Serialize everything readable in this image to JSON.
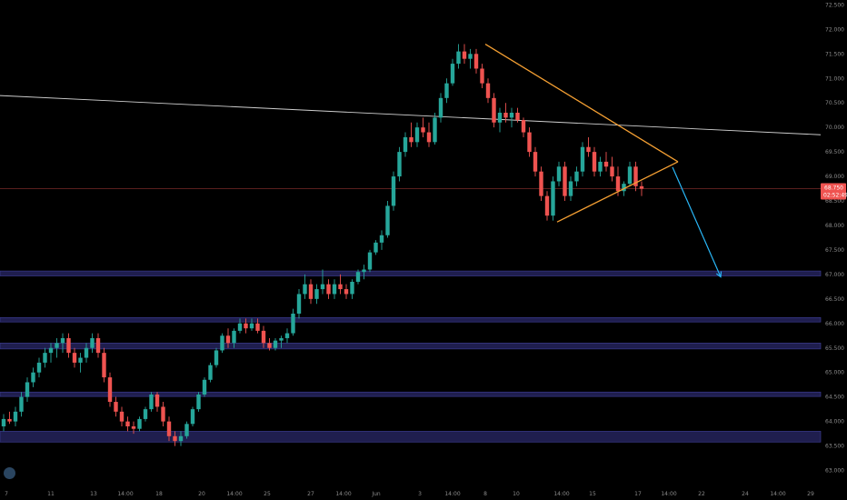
{
  "chart_data": {
    "type": "candlestick",
    "y_range": [
      62.75,
      72.6
    ],
    "y_ticks": [
      "72.500",
      "72.000",
      "71.500",
      "71.000",
      "70.500",
      "70.000",
      "69.500",
      "69.000",
      "68.500",
      "68.000",
      "67.500",
      "67.000",
      "66.500",
      "66.000",
      "65.500",
      "65.000",
      "64.500",
      "64.000",
      "63.500",
      "63.000"
    ],
    "x_ticks": [
      "7",
      "11",
      "13",
      "14:00",
      "18",
      "20",
      "14:00",
      "25",
      "27",
      "14:00",
      "Jun",
      "3",
      "14:00",
      "8",
      "10",
      "14:00",
      "15",
      "17",
      "14:00",
      "22",
      "24",
      "14:00",
      "29"
    ],
    "last_price": {
      "value": 68.75,
      "label": "68.750",
      "countdown": "02:52:49"
    },
    "support_zones": [
      [
        66.97,
        67.07
      ],
      [
        66.03,
        66.12
      ],
      [
        65.48,
        65.6
      ],
      [
        64.51,
        64.6
      ],
      [
        63.58,
        63.8
      ]
    ],
    "resistance_line": {
      "from": 70.65,
      "to": 69.85
    },
    "triangle": {
      "apex": 69.3,
      "upper_start": 71.7,
      "lower_start": 68.07
    },
    "projection_target": 66.95,
    "colors": {
      "up": "#26a69a",
      "down": "#ef5350",
      "zone": "#1f1e4e",
      "zone_border": "#3a3a8c",
      "triangle": "#f5a033",
      "arrow": "#29b6f6",
      "trend": "#cfcfcf",
      "last_price": "#ef5350"
    },
    "candles": [
      [
        63.9,
        64.15,
        63.8,
        64.05
      ],
      [
        64.05,
        64.2,
        63.95,
        64.0
      ],
      [
        64.0,
        64.3,
        63.9,
        64.2
      ],
      [
        64.2,
        64.6,
        64.1,
        64.5
      ],
      [
        64.5,
        64.9,
        64.4,
        64.8
      ],
      [
        64.8,
        65.1,
        64.7,
        65.0
      ],
      [
        65.0,
        65.3,
        64.9,
        65.2
      ],
      [
        65.2,
        65.5,
        65.1,
        65.4
      ],
      [
        65.4,
        65.6,
        65.2,
        65.5
      ],
      [
        65.5,
        65.7,
        65.3,
        65.6
      ],
      [
        65.6,
        65.8,
        65.4,
        65.7
      ],
      [
        65.7,
        65.8,
        65.3,
        65.4
      ],
      [
        65.4,
        65.5,
        65.1,
        65.2
      ],
      [
        65.2,
        65.4,
        65.0,
        65.3
      ],
      [
        65.3,
        65.6,
        65.2,
        65.5
      ],
      [
        65.5,
        65.8,
        65.4,
        65.7
      ],
      [
        65.7,
        65.8,
        65.3,
        65.4
      ],
      [
        65.4,
        65.5,
        64.8,
        64.9
      ],
      [
        64.9,
        65.0,
        64.3,
        64.4
      ],
      [
        64.4,
        64.5,
        64.1,
        64.2
      ],
      [
        64.2,
        64.3,
        63.9,
        64.0
      ],
      [
        64.0,
        64.1,
        63.8,
        63.9
      ],
      [
        63.9,
        64.0,
        63.75,
        63.85
      ],
      [
        63.85,
        64.1,
        63.8,
        64.05
      ],
      [
        64.05,
        64.3,
        64.0,
        64.25
      ],
      [
        64.25,
        64.6,
        64.2,
        64.55
      ],
      [
        64.55,
        64.6,
        64.2,
        64.3
      ],
      [
        64.3,
        64.4,
        63.9,
        64.0
      ],
      [
        64.0,
        64.1,
        63.6,
        63.7
      ],
      [
        63.7,
        63.8,
        63.5,
        63.6
      ],
      [
        63.6,
        63.8,
        63.5,
        63.7
      ],
      [
        63.7,
        64.0,
        63.65,
        63.95
      ],
      [
        63.95,
        64.3,
        63.9,
        64.25
      ],
      [
        64.25,
        64.6,
        64.2,
        64.55
      ],
      [
        64.55,
        64.9,
        64.5,
        64.85
      ],
      [
        64.85,
        65.2,
        64.8,
        65.15
      ],
      [
        65.15,
        65.5,
        65.1,
        65.45
      ],
      [
        65.45,
        65.8,
        65.4,
        65.75
      ],
      [
        65.75,
        65.9,
        65.5,
        65.6
      ],
      [
        65.6,
        65.9,
        65.5,
        65.85
      ],
      [
        65.85,
        66.1,
        65.8,
        66.0
      ],
      [
        66.0,
        66.1,
        65.8,
        65.9
      ],
      [
        65.9,
        66.1,
        65.85,
        66.0
      ],
      [
        66.0,
        66.1,
        65.8,
        65.85
      ],
      [
        65.85,
        65.95,
        65.5,
        65.6
      ],
      [
        65.6,
        65.7,
        65.45,
        65.5
      ],
      [
        65.5,
        65.7,
        65.45,
        65.65
      ],
      [
        65.65,
        65.75,
        65.5,
        65.7
      ],
      [
        65.7,
        65.9,
        65.6,
        65.8
      ],
      [
        65.8,
        66.3,
        65.75,
        66.2
      ],
      [
        66.2,
        66.7,
        66.1,
        66.6
      ],
      [
        66.6,
        67.0,
        66.5,
        66.8
      ],
      [
        66.8,
        66.9,
        66.4,
        66.5
      ],
      [
        66.5,
        66.8,
        66.4,
        66.7
      ],
      [
        66.7,
        67.1,
        66.6,
        66.8
      ],
      [
        66.8,
        66.9,
        66.5,
        66.6
      ],
      [
        66.6,
        66.9,
        66.5,
        66.8
      ],
      [
        66.8,
        67.0,
        66.6,
        66.7
      ],
      [
        66.7,
        66.8,
        66.5,
        66.6
      ],
      [
        66.6,
        66.9,
        66.5,
        66.85
      ],
      [
        66.85,
        67.1,
        66.8,
        67.05
      ],
      [
        67.05,
        67.2,
        66.9,
        67.1
      ],
      [
        67.1,
        67.5,
        67.05,
        67.45
      ],
      [
        67.45,
        67.7,
        67.4,
        67.65
      ],
      [
        67.65,
        67.9,
        67.5,
        67.8
      ],
      [
        67.8,
        68.5,
        67.75,
        68.4
      ],
      [
        68.4,
        69.1,
        68.3,
        69.0
      ],
      [
        69.0,
        69.6,
        68.9,
        69.5
      ],
      [
        69.5,
        69.9,
        69.4,
        69.8
      ],
      [
        69.8,
        70.1,
        69.6,
        69.7
      ],
      [
        69.7,
        70.1,
        69.6,
        70.0
      ],
      [
        70.0,
        70.2,
        69.8,
        69.9
      ],
      [
        69.9,
        70.1,
        69.6,
        69.7
      ],
      [
        69.7,
        70.3,
        69.65,
        70.2
      ],
      [
        70.2,
        70.7,
        70.1,
        70.6
      ],
      [
        70.6,
        71.0,
        70.5,
        70.9
      ],
      [
        70.9,
        71.4,
        70.85,
        71.3
      ],
      [
        71.3,
        71.7,
        71.2,
        71.55
      ],
      [
        71.55,
        71.7,
        71.3,
        71.4
      ],
      [
        71.4,
        71.6,
        71.2,
        71.5
      ],
      [
        71.5,
        71.6,
        71.1,
        71.2
      ],
      [
        71.2,
        71.3,
        70.8,
        70.9
      ],
      [
        70.9,
        71.0,
        70.5,
        70.6
      ],
      [
        70.6,
        70.7,
        70.0,
        70.1
      ],
      [
        70.1,
        70.4,
        69.9,
        70.3
      ],
      [
        70.3,
        70.5,
        70.1,
        70.2
      ],
      [
        70.2,
        70.4,
        70.0,
        70.3
      ],
      [
        70.3,
        70.4,
        70.1,
        70.15
      ],
      [
        70.15,
        70.2,
        69.8,
        69.9
      ],
      [
        69.9,
        70.0,
        69.4,
        69.5
      ],
      [
        69.5,
        69.6,
        69.0,
        69.1
      ],
      [
        69.1,
        69.2,
        68.5,
        68.6
      ],
      [
        68.6,
        68.7,
        68.1,
        68.2
      ],
      [
        68.2,
        69.0,
        68.1,
        68.9
      ],
      [
        68.9,
        69.3,
        68.8,
        69.2
      ],
      [
        69.2,
        69.3,
        68.5,
        68.6
      ],
      [
        68.6,
        69.0,
        68.5,
        68.9
      ],
      [
        68.9,
        69.2,
        68.8,
        69.1
      ],
      [
        69.1,
        69.7,
        69.0,
        69.6
      ],
      [
        69.6,
        69.8,
        69.4,
        69.5
      ],
      [
        69.5,
        69.6,
        69.0,
        69.1
      ],
      [
        69.1,
        69.4,
        69.0,
        69.3
      ],
      [
        69.3,
        69.5,
        69.1,
        69.2
      ],
      [
        69.2,
        69.4,
        68.9,
        69.0
      ],
      [
        69.0,
        69.2,
        68.6,
        68.7
      ],
      [
        68.7,
        68.9,
        68.6,
        68.85
      ],
      [
        68.85,
        69.3,
        68.8,
        69.2
      ],
      [
        69.2,
        69.3,
        68.7,
        68.8
      ],
      [
        68.8,
        68.9,
        68.6,
        68.75
      ]
    ]
  }
}
